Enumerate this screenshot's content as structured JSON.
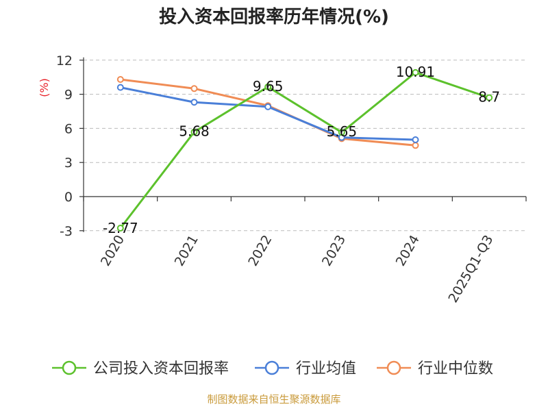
{
  "chart_data": {
    "type": "line",
    "title": "投入资本回报率历年情况(%)",
    "ylabel": "(%)",
    "categories": [
      "2020",
      "2021",
      "2022",
      "2023",
      "2024",
      "2025Q1-Q3"
    ],
    "ylim": [
      -3,
      12
    ],
    "yticks": [
      -3,
      0,
      3,
      6,
      9,
      12
    ],
    "grid": true,
    "legend_position": "bottom",
    "series": [
      {
        "name": "公司投入资本回报率",
        "color": "#5cc12c",
        "values": [
          -2.77,
          5.68,
          9.65,
          5.65,
          10.91,
          8.7
        ],
        "labels": [
          "-2.77",
          "5.68",
          "9.65",
          "5.65",
          "10.91",
          "8.7"
        ]
      },
      {
        "name": "行业均值",
        "color": "#4a7fd8",
        "values": [
          9.6,
          8.3,
          7.9,
          5.2,
          5.0,
          null
        ]
      },
      {
        "name": "行业中位数",
        "color": "#f08c55",
        "values": [
          10.3,
          9.5,
          8.0,
          5.1,
          4.5,
          null
        ]
      }
    ]
  },
  "source": "制图数据来自恒生聚源数据库"
}
